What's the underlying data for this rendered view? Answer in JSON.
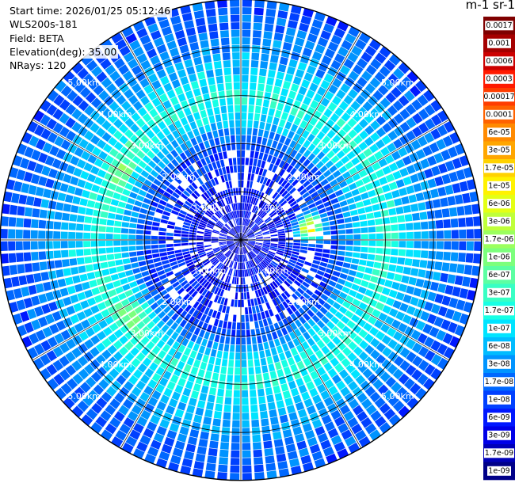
{
  "header": {
    "start_time": "Start time: 2026/01/25 05:12:46",
    "instrument": "WLS200s-181",
    "field": "Field: BETA",
    "elevation": "Elevation(deg): 35.00",
    "nrays": "NRays: 120"
  },
  "colorbar": {
    "title": "m-1 sr-1",
    "labels": [
      "0.0017",
      "0.001",
      "0.0006",
      "0.0003",
      "0.00017",
      "0.0001",
      "6e-05",
      "3e-05",
      "1.7e-05",
      "1e-05",
      "6e-06",
      "3e-06",
      "1.7e-06",
      "1e-06",
      "6e-07",
      "3e-07",
      "1.7e-07",
      "1e-07",
      "6e-08",
      "3e-08",
      "1.7e-08",
      "1e-08",
      "6e-09",
      "3e-09",
      "1.7e-09",
      "1e-09"
    ],
    "colors": [
      "#7f0000",
      "#a50000",
      "#cc0000",
      "#ff1a00",
      "#ff3d00",
      "#ff6200",
      "#ff8a00",
      "#ffa600",
      "#ffd200",
      "#fff200",
      "#e4ff14",
      "#bfff3a",
      "#9bff5e",
      "#7cff7c",
      "#5cffa2",
      "#38ffc4",
      "#17ffe4",
      "#00e4ff",
      "#00bcff",
      "#0094ff",
      "#0068ff",
      "#0040ff",
      "#0018ff",
      "#0000e8",
      "#0000b8",
      "#000088"
    ]
  },
  "chart_data": {
    "type": "heatmap",
    "projection": "polar PPI scan",
    "field": "BETA",
    "elevation_deg": 35.0,
    "nrays": 120,
    "range_max_km": 5.0,
    "ring_labels_km": [
      "1.00km",
      "2.00km",
      "3.00km",
      "4.00km",
      "5.00km"
    ],
    "colorscale": "log",
    "colorbar_range": [
      1e-09,
      0.0017
    ],
    "radial_profile_log10": [
      {
        "range_km": 0.0,
        "value": -8.3
      },
      {
        "range_km": 1.0,
        "value": -8.2
      },
      {
        "range_km": 2.0,
        "value": -7.9
      },
      {
        "range_km": 2.5,
        "value": -7.0
      },
      {
        "range_km": 3.0,
        "value": -6.7
      },
      {
        "range_km": 3.5,
        "value": -7.1
      },
      {
        "range_km": 4.2,
        "value": -7.6
      },
      {
        "range_km": 5.0,
        "value": -7.85
      }
    ],
    "hotspots": [
      {
        "azimuth_deg": 80,
        "range_km": 1.45,
        "value": 1.2e-05
      },
      {
        "azimuth_deg": 300,
        "range_km": 2.9,
        "value": 1e-06
      },
      {
        "azimuth_deg": 235,
        "range_km": 2.8,
        "value": 1e-06
      }
    ]
  }
}
